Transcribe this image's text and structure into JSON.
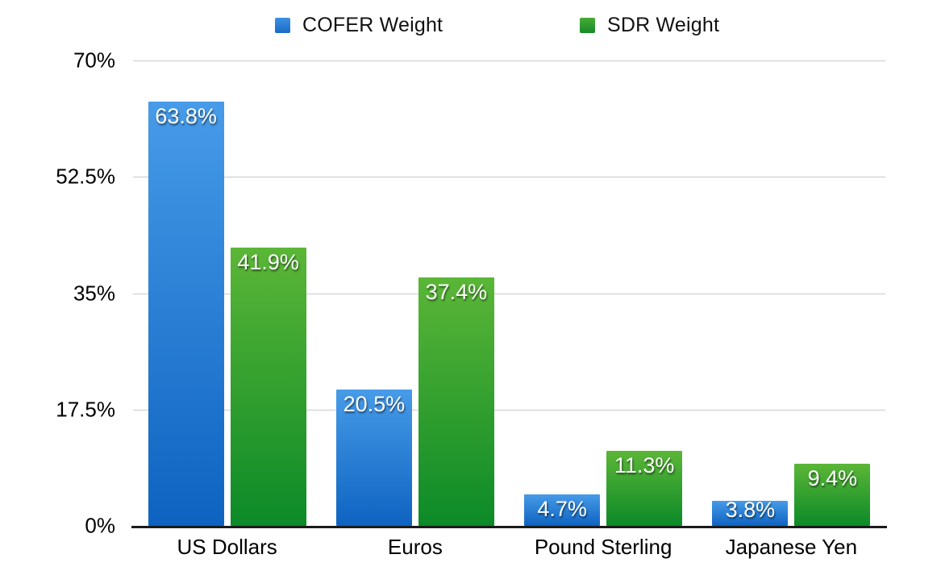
{
  "chart_data": {
    "type": "bar",
    "title": "",
    "categories": [
      "US Dollars",
      "Euros",
      "Pound Sterling",
      "Japanese Yen"
    ],
    "series": [
      {
        "name": "COFER Weight",
        "values": [
          63.8,
          20.5,
          4.7,
          3.8
        ],
        "labels": [
          "63.8%",
          "20.5%",
          "4.7%",
          "3.8%"
        ],
        "bar_color_top": "#479BE8",
        "bar_color_bottom": "#0E63C1",
        "legend_color_top": "#3C90E2",
        "legend_color_bottom": "#1A6CC6"
      },
      {
        "name": "SDR Weight",
        "values": [
          41.9,
          37.4,
          11.3,
          9.4
        ],
        "labels": [
          "41.9%",
          "37.4%",
          "11.3%",
          "9.4%"
        ],
        "bar_color_top": "#5BB637",
        "bar_color_bottom": "#0C8A28",
        "legend_color_top": "#46AB36",
        "legend_color_bottom": "#178B29"
      }
    ],
    "y_ticks": [
      "70%",
      "52.5%",
      "35%",
      "17.5%",
      "0%"
    ],
    "ylim": [
      0,
      70
    ],
    "grid": true,
    "legend_position": "top",
    "xlabel": "",
    "ylabel": ""
  },
  "colors": {
    "background": "#ffffff",
    "gridline": "#c9c9c9",
    "axis_line": "#1b1b1b",
    "value_label_text": "#ffffff",
    "tick_label_text": "#000000"
  }
}
